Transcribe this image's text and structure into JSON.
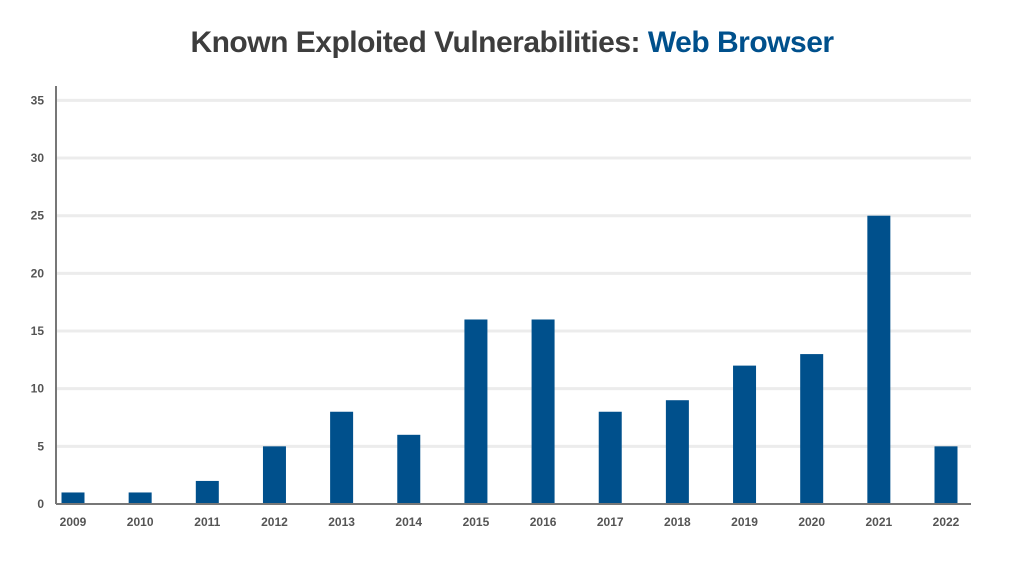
{
  "colors": {
    "bar": "#00508c",
    "title": "#3d3d3d",
    "title_accent": "#00508c",
    "grid": "#ececec",
    "axis": "#777777",
    "tick_text": "#555555"
  },
  "chart_data": {
    "type": "bar",
    "title": "Known Exploited Vulnerabilities:",
    "title_highlight": "Web Browser",
    "xlabel": "",
    "ylabel": "",
    "categories": [
      "2009",
      "2010",
      "2011",
      "2012",
      "2013",
      "2014",
      "2015",
      "2016",
      "2017",
      "2018",
      "2019",
      "2020",
      "2021",
      "2022"
    ],
    "values": [
      1,
      1,
      2,
      5,
      8,
      6,
      16,
      16,
      8,
      9,
      12,
      13,
      25,
      5
    ],
    "ylim": [
      0,
      35
    ],
    "yticks": [
      0,
      5,
      10,
      15,
      20,
      25,
      30,
      35
    ],
    "grid": true,
    "legend": "none"
  }
}
